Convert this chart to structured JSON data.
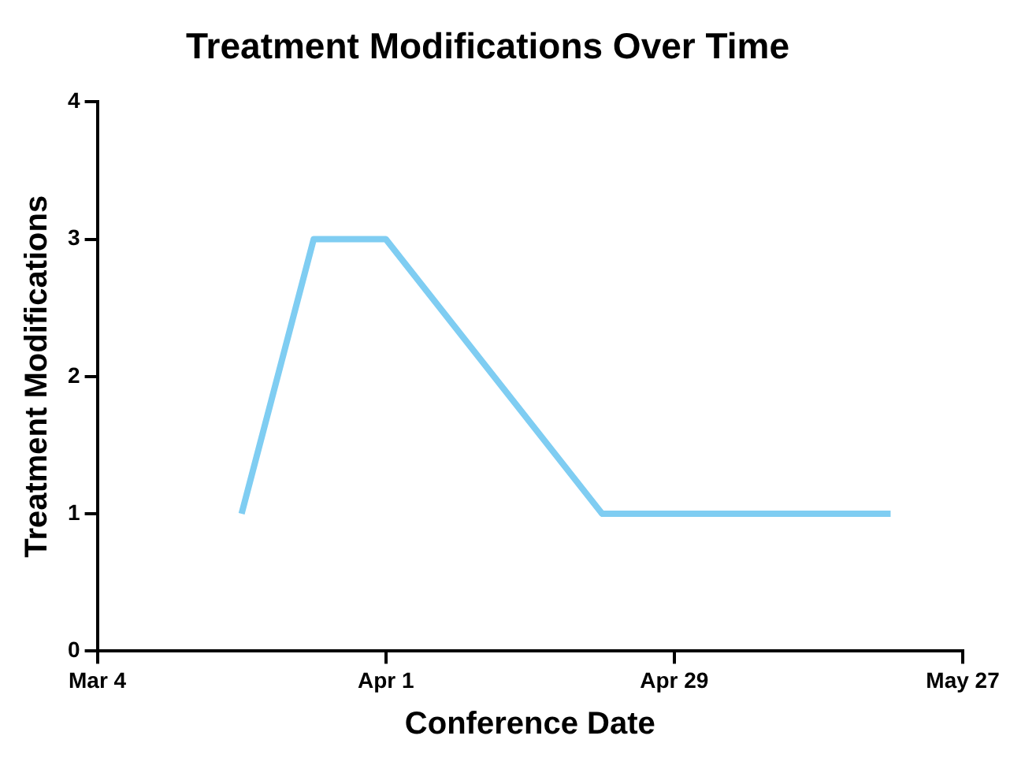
{
  "chart_data": {
    "type": "line",
    "title": "Treatment Modifications Over Time",
    "xlabel": "Conference Date",
    "ylabel": "Treatment Modifications",
    "x": [
      "--03-18",
      "--03-25",
      "--04-01",
      "--04-22",
      "--05-20"
    ],
    "series": [
      {
        "color": "#7fcdf2",
        "values": [
          1,
          3,
          3,
          1,
          1
        ]
      }
    ],
    "xlim": [
      "--03-04",
      "--05-27"
    ],
    "xticks": [
      {
        "value": "--03-04",
        "label": "Mar 4"
      },
      {
        "value": "--04-01",
        "label": "Apr 1"
      },
      {
        "value": "--04-29",
        "label": "Apr 29"
      },
      {
        "value": "--05-27",
        "label": "May 27"
      }
    ],
    "ylim": [
      0,
      4
    ],
    "yticks": [
      0,
      1,
      2,
      3,
      4
    ],
    "grid": false,
    "legend": false,
    "marker": "none",
    "line_style": "solid"
  }
}
